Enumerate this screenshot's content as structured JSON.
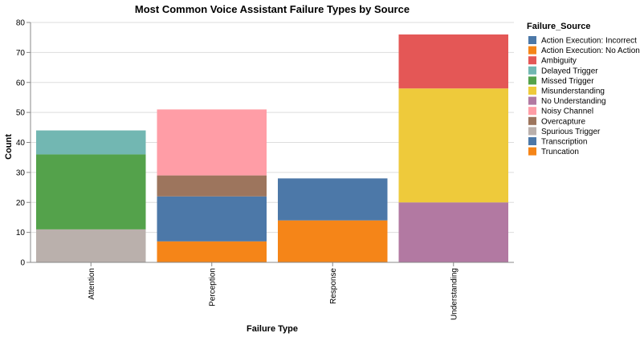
{
  "chart_data": {
    "type": "bar",
    "stacked": true,
    "title": "Most Common Voice Assistant Failure Types by Source",
    "xlabel": "Failure Type",
    "ylabel": "Count",
    "ylim": [
      0,
      80
    ],
    "yticks": [
      "0",
      "10",
      "20",
      "30",
      "40",
      "50",
      "60",
      "70",
      "80"
    ],
    "grid": true,
    "legend_position": "right",
    "legend_title": "Failure_Source",
    "categories": [
      "Attention",
      "Perception",
      "Response",
      "Understanding"
    ],
    "series": [
      {
        "name": "Action Execution: Incorrect",
        "color": "#4c78a8",
        "values": [
          0,
          0,
          14,
          0
        ]
      },
      {
        "name": "Action Execution: No Action",
        "color": "#f58518",
        "values": [
          0,
          0,
          14,
          0
        ]
      },
      {
        "name": "Ambiguity",
        "color": "#e45756",
        "values": [
          0,
          0,
          0,
          18
        ]
      },
      {
        "name": "Delayed Trigger",
        "color": "#72b7b2",
        "values": [
          8,
          0,
          0,
          0
        ]
      },
      {
        "name": "Missed Trigger",
        "color": "#54a24b",
        "values": [
          25,
          0,
          0,
          0
        ]
      },
      {
        "name": "Misunderstanding",
        "color": "#eeca3b",
        "values": [
          0,
          0,
          0,
          38
        ]
      },
      {
        "name": "No Understanding",
        "color": "#b279a2",
        "values": [
          0,
          0,
          0,
          20
        ]
      },
      {
        "name": "Noisy Channel",
        "color": "#ff9da6",
        "values": [
          0,
          22,
          0,
          0
        ]
      },
      {
        "name": "Overcapture",
        "color": "#9d755d",
        "values": [
          0,
          7,
          0,
          0
        ]
      },
      {
        "name": "Spurious Trigger",
        "color": "#bab0ac",
        "values": [
          11,
          0,
          0,
          0
        ]
      },
      {
        "name": "Transcription",
        "color": "#4c78a8",
        "values": [
          0,
          15,
          0,
          0
        ]
      },
      {
        "name": "Truncation",
        "color": "#f58518",
        "values": [
          0,
          7,
          0,
          0
        ]
      }
    ],
    "stack_order": [
      [
        "Spurious Trigger",
        "Missed Trigger",
        "Delayed Trigger"
      ],
      [
        "Truncation",
        "Transcription",
        "Overcapture",
        "Noisy Channel"
      ],
      [
        "Action Execution: No Action",
        "Action Execution: Incorrect"
      ],
      [
        "No Understanding",
        "Misunderstanding",
        "Ambiguity"
      ]
    ]
  }
}
